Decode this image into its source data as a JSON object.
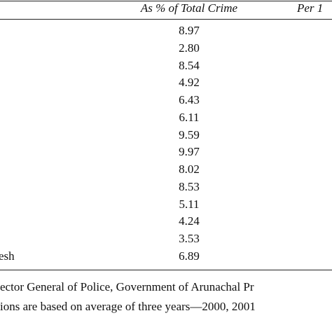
{
  "table": {
    "columns": [
      "As % of Total Crime",
      "Per 1"
    ],
    "rows": [
      {
        "value": "8.97"
      },
      {
        "value": "2.80"
      },
      {
        "value": "8.54"
      },
      {
        "value": "4.92"
      },
      {
        "value": "6.43"
      },
      {
        "value": "6.11"
      },
      {
        "value": "9.59"
      },
      {
        "value": "9.97"
      },
      {
        "value": "8.02"
      },
      {
        "value": "8.53"
      },
      {
        "value": "5.11"
      },
      {
        "value": "4.24"
      },
      {
        "value": "3.53"
      },
      {
        "label": "esh",
        "value": "6.89"
      }
    ]
  },
  "notes": [
    "ector General of Police, Government of Arunachal Pr",
    "ions are based on average of three years—2000, 2001"
  ]
}
